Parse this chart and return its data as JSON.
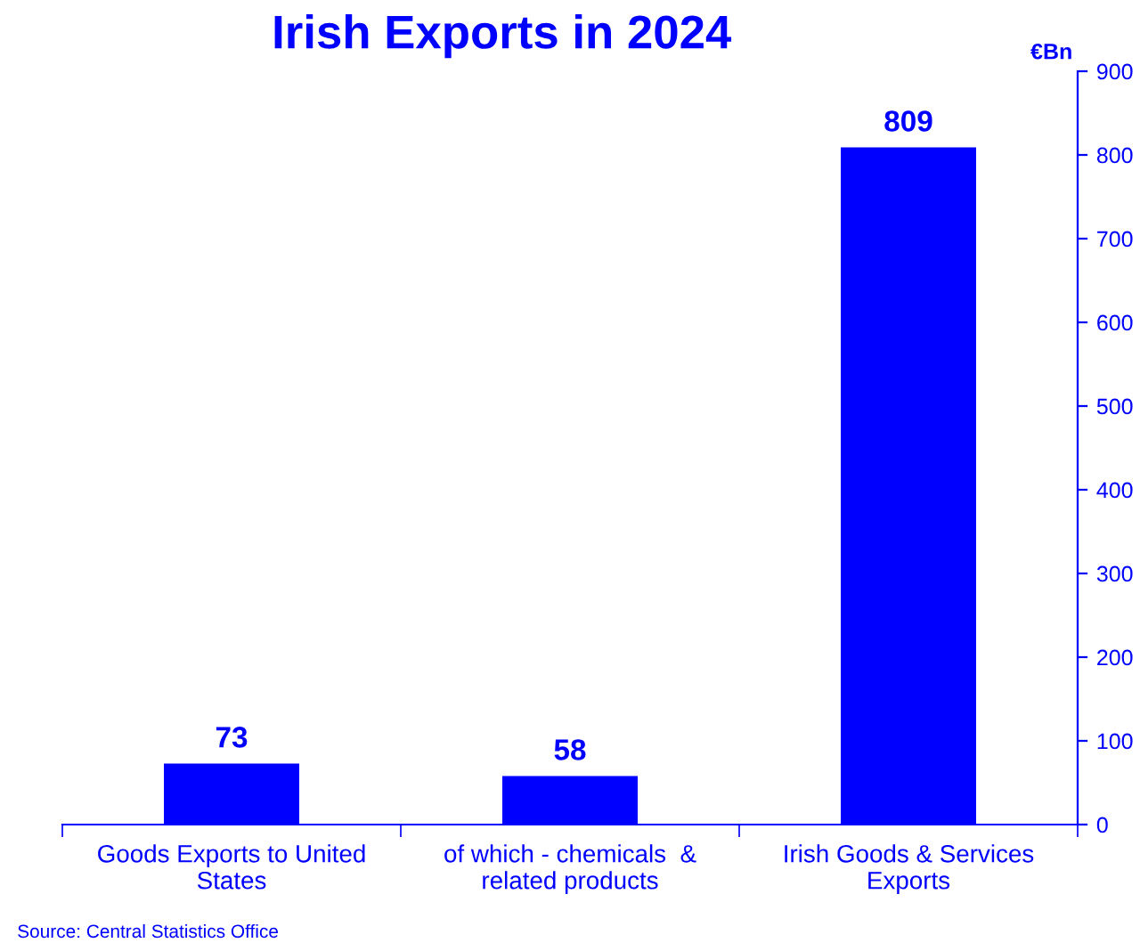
{
  "chart_data": {
    "type": "bar",
    "title": "Irish Exports in 2024",
    "ylabel": "€Bn",
    "categories": [
      "Goods Exports to United\nStates",
      "of which - chemicals  &\nrelated products",
      "Irish Goods & Services\nExports"
    ],
    "values": [
      73,
      58,
      809
    ],
    "color": "#0000ff",
    "ylim": [
      0,
      900
    ],
    "yticks": [
      0,
      100,
      200,
      300,
      400,
      500,
      600,
      700,
      800,
      900
    ],
    "data_labels": true,
    "grid": false,
    "legend": false,
    "annotations": [
      "Source: Central Statistics Office"
    ]
  }
}
